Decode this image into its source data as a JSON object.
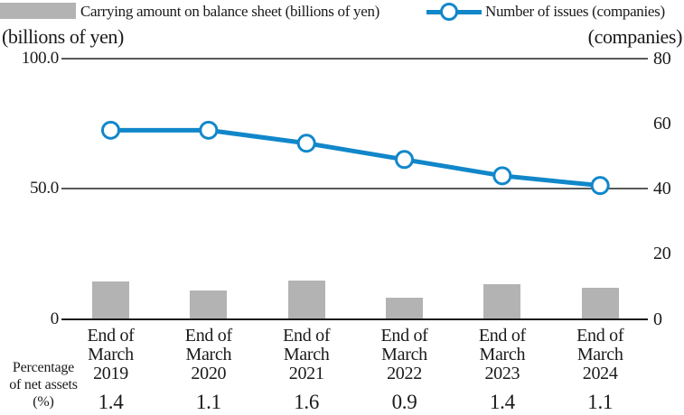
{
  "legend": {
    "bar_label": "Carrying amount on balance sheet (billions of yen)",
    "line_label": "Number of issues (companies)"
  },
  "axes": {
    "left_caption": "(billions of yen)",
    "right_caption": "(companies)",
    "left_ticks": [
      {
        "value": 100,
        "label": "100.0",
        "gridline": true
      },
      {
        "value": 50,
        "label": "50.0",
        "gridline": true
      },
      {
        "value": 0,
        "label": "0",
        "gridline": false
      }
    ],
    "right_ticks": [
      {
        "value": 80,
        "label": "80"
      },
      {
        "value": 60,
        "label": "60"
      },
      {
        "value": 40,
        "label": "40"
      },
      {
        "value": 20,
        "label": "20"
      },
      {
        "value": 0,
        "label": "0"
      }
    ]
  },
  "chart_data": {
    "type": "bar+line",
    "title": "",
    "categories": [
      "End of March 2019",
      "End of March 2020",
      "End of March 2021",
      "End of March 2022",
      "End of March 2023",
      "End of March 2024"
    ],
    "category_lines": [
      [
        "End of",
        "March",
        "2019"
      ],
      [
        "End of",
        "March",
        "2020"
      ],
      [
        "End of",
        "March",
        "2021"
      ],
      [
        "End of",
        "March",
        "2022"
      ],
      [
        "End of",
        "March",
        "2023"
      ],
      [
        "End of",
        "March",
        "2024"
      ]
    ],
    "series": [
      {
        "name": "Carrying amount on balance sheet (billions of yen)",
        "type": "bar",
        "axis": "left",
        "color": "#b3b3b3",
        "values": [
          14.5,
          11.0,
          14.7,
          8.1,
          13.3,
          12.0
        ]
      },
      {
        "name": "Number of issues (companies)",
        "type": "line",
        "axis": "right",
        "color": "#1187ca",
        "values": [
          58,
          58,
          54,
          49,
          44,
          41
        ]
      }
    ],
    "left_axis": {
      "label": "(billions of yen)",
      "range": [
        0,
        100
      ]
    },
    "right_axis": {
      "label": "(companies)",
      "range": [
        0,
        80
      ]
    },
    "grid": "horizontal, at left-axis 50 and 100 only",
    "legend_position": "top",
    "footer_row": {
      "label_lines": [
        "Percentage",
        "of net assets",
        "(%)"
      ],
      "values": [
        "1.4",
        "1.1",
        "1.6",
        "0.9",
        "1.4",
        "1.1"
      ]
    }
  }
}
